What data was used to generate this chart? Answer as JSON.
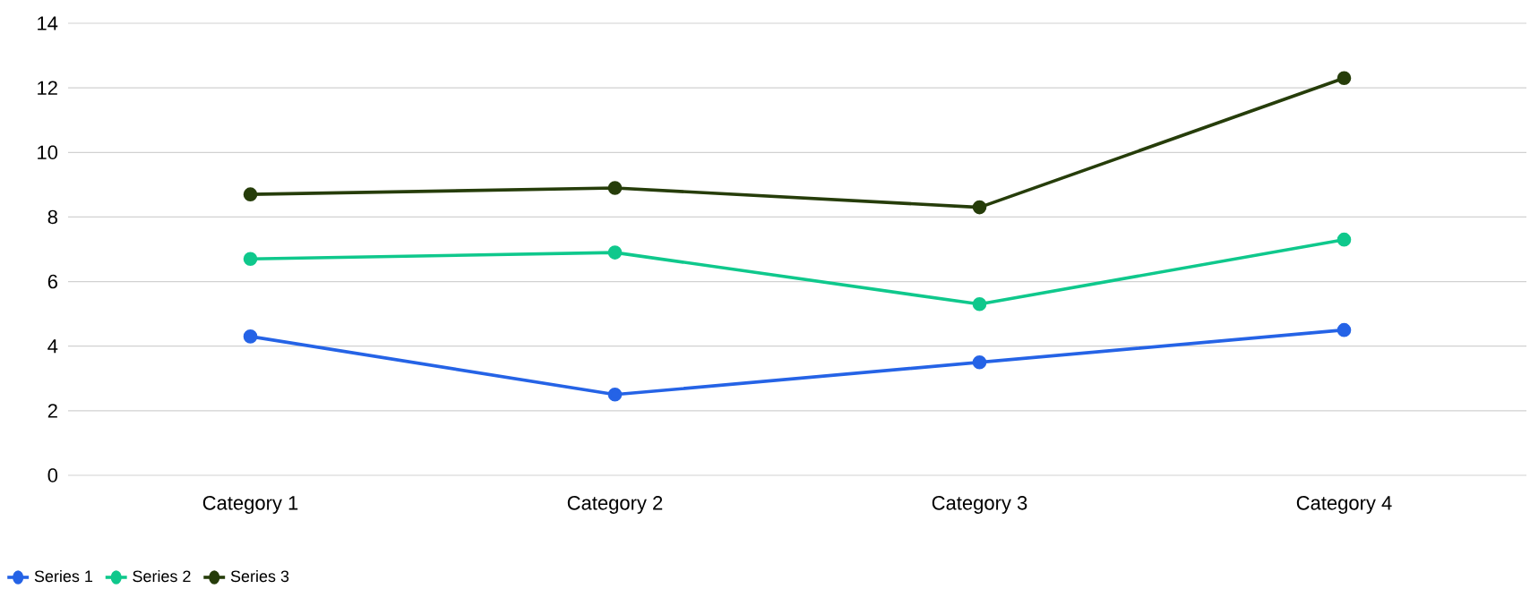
{
  "chart_data": {
    "type": "line",
    "categories": [
      "Category 1",
      "Category 2",
      "Category 3",
      "Category 4"
    ],
    "series": [
      {
        "name": "Series 1",
        "color": "#2563e6",
        "values": [
          4.3,
          2.5,
          3.5,
          4.5
        ]
      },
      {
        "name": "Series 2",
        "color": "#0fc88c",
        "values": [
          6.7,
          6.9,
          5.3,
          7.3
        ]
      },
      {
        "name": "Series 3",
        "color": "#263d0a",
        "values": [
          8.7,
          8.9,
          8.3,
          12.3
        ]
      }
    ],
    "ylim": [
      0,
      14
    ],
    "yticks": [
      0,
      2,
      4,
      6,
      8,
      10,
      12,
      14
    ],
    "grid": "y",
    "legend": "bottom left",
    "marker": "circle"
  }
}
